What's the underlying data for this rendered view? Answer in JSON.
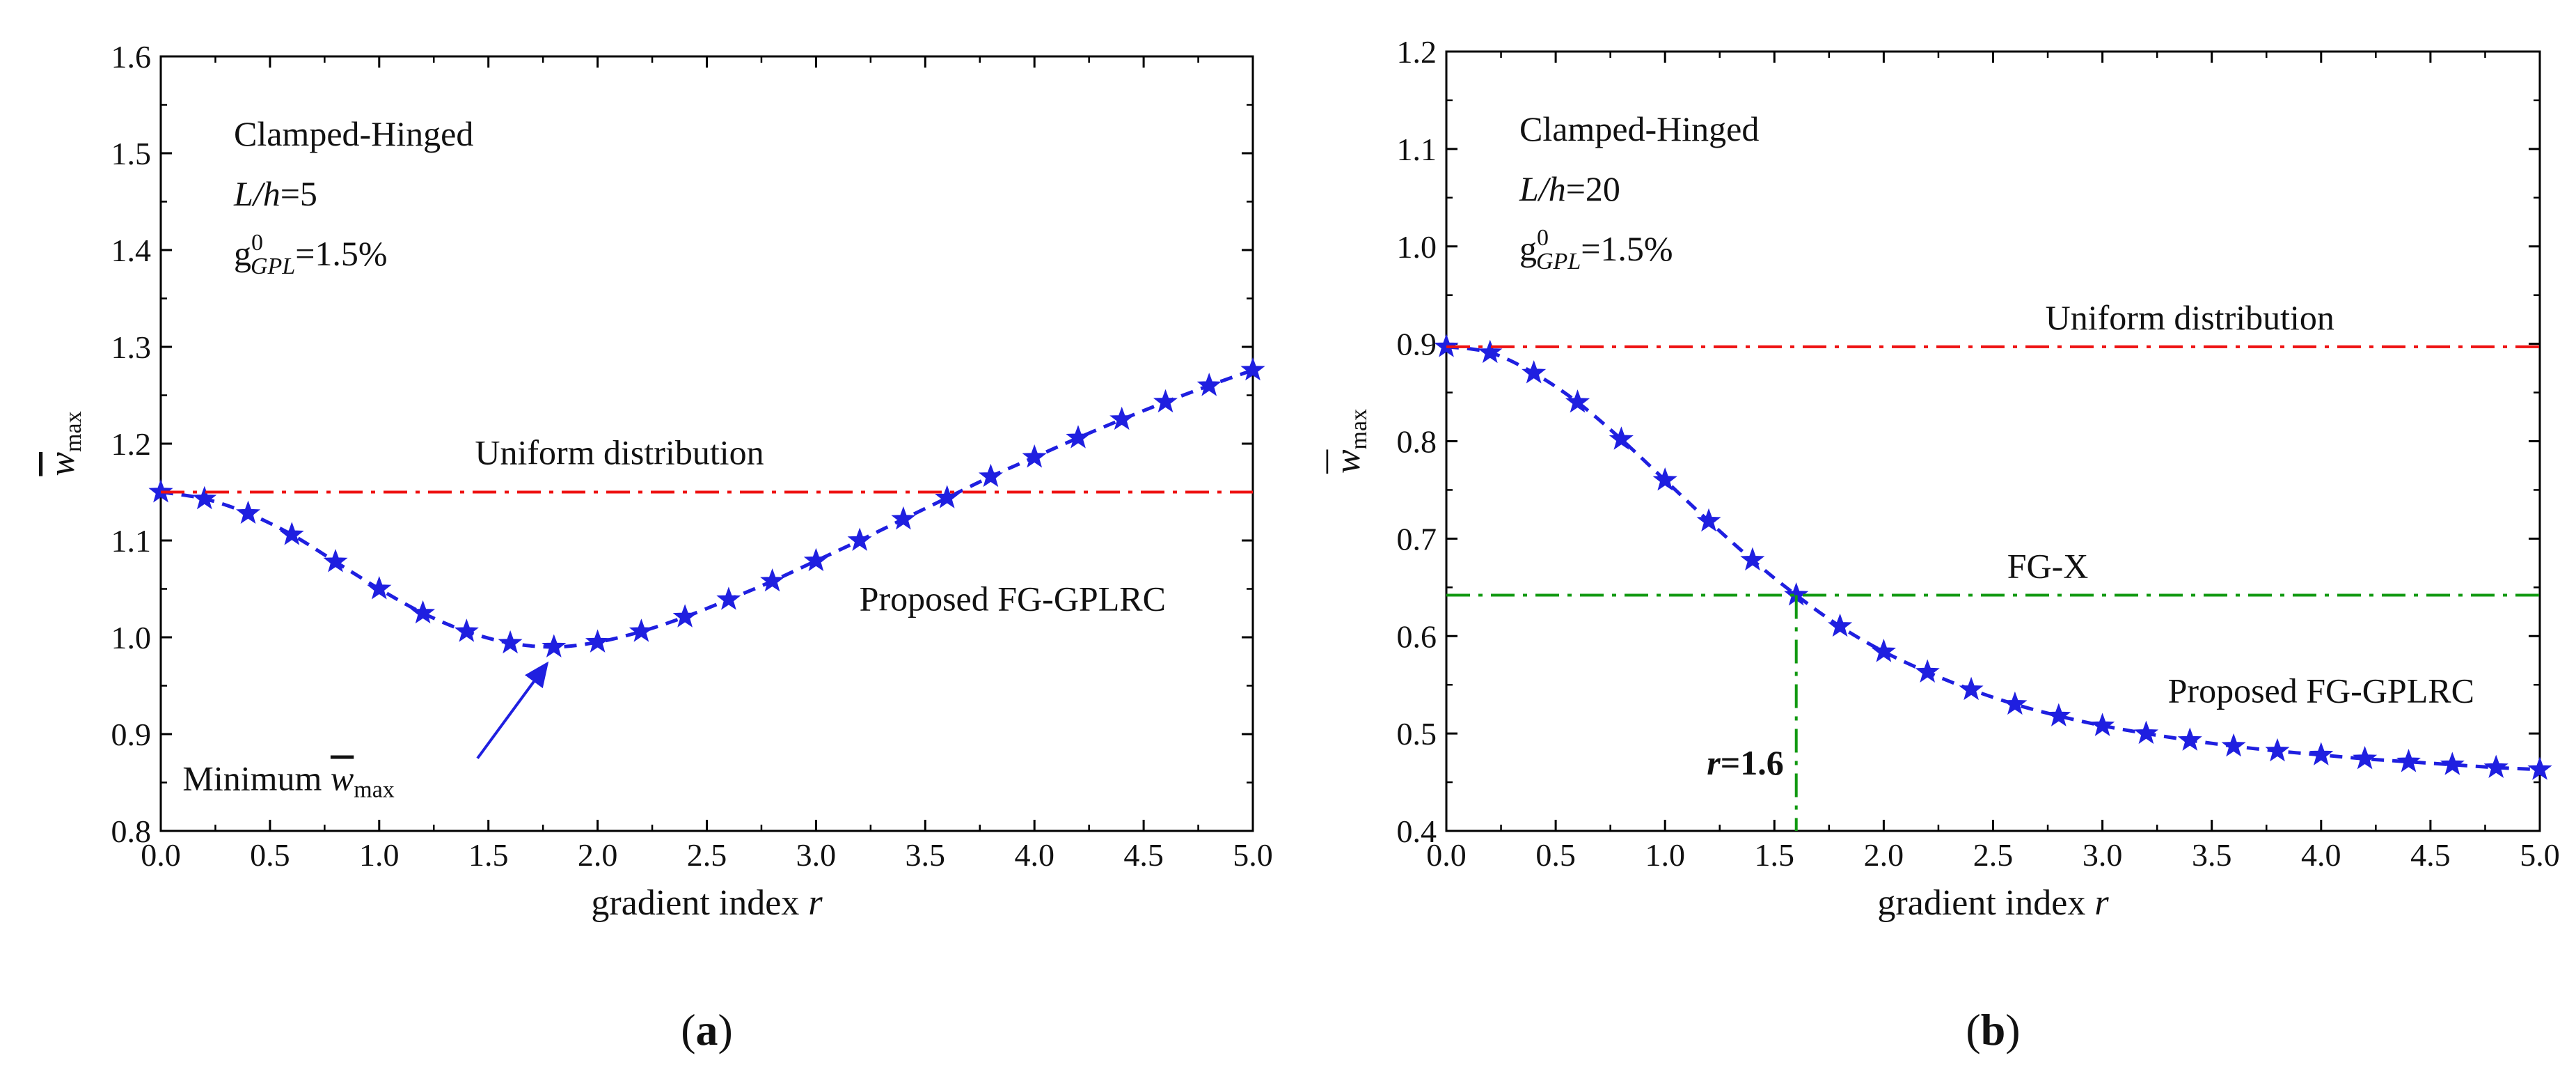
{
  "chart_data": [
    {
      "type": "line",
      "panel_label": "a",
      "xlabel": "gradient index",
      "xlabel_var": "r",
      "ylabel_sym": "w",
      "ylabel_sub": "max",
      "xlim": [
        0.0,
        5.0
      ],
      "ylim": [
        0.8,
        1.6
      ],
      "xticks": [
        "0.0",
        "0.5",
        "1.0",
        "1.5",
        "2.0",
        "2.5",
        "3.0",
        "3.5",
        "4.0",
        "4.5",
        "5.0"
      ],
      "yticks": [
        "0.8",
        "0.9",
        "1.0",
        "1.1",
        "1.2",
        "1.3",
        "1.4",
        "1.5",
        "1.6"
      ],
      "text_title": "Clamped-Hinged",
      "text_ratio_var": "L/h",
      "text_ratio_val": "=5",
      "text_g_base": "g",
      "text_g_sup": "0",
      "text_g_sub": "GPL",
      "text_g_val": "=1.5%",
      "series": [
        {
          "name": "Proposed FG-GPLRC",
          "color": "#1f1fe0",
          "style": "dashed-star",
          "x": [
            0.0,
            0.2,
            0.4,
            0.6,
            0.8,
            1.0,
            1.2,
            1.4,
            1.6,
            1.8,
            2.0,
            2.2,
            2.4,
            2.6,
            2.8,
            3.0,
            3.2,
            3.4,
            3.6,
            3.8,
            4.0,
            4.2,
            4.4,
            4.6,
            4.8,
            5.0
          ],
          "y": [
            1.15,
            1.143,
            1.128,
            1.106,
            1.078,
            1.05,
            1.025,
            1.006,
            0.994,
            0.99,
            0.995,
            1.006,
            1.021,
            1.039,
            1.058,
            1.079,
            1.1,
            1.122,
            1.144,
            1.166,
            1.186,
            1.206,
            1.225,
            1.243,
            1.26,
            1.276
          ]
        },
        {
          "name": "Uniform distribution",
          "color": "#ee1111",
          "style": "dashdot",
          "x": [
            0.0,
            5.0
          ],
          "y": [
            1.15,
            1.15
          ]
        }
      ],
      "annotations": [
        {
          "text": "Minimum",
          "sym": "w",
          "sub": "max",
          "x": 0.1,
          "y": 0.855,
          "arrow_to": [
            1.8,
            0.99
          ],
          "color": "#1f1fe0"
        }
      ]
    },
    {
      "type": "line",
      "panel_label": "b",
      "xlabel": "gradient index",
      "xlabel_var": "r",
      "ylabel_sym": "w",
      "ylabel_sub": "max",
      "xlim": [
        0.0,
        5.0
      ],
      "ylim": [
        0.4,
        1.2
      ],
      "xticks": [
        "0.0",
        "0.5",
        "1.0",
        "1.5",
        "2.0",
        "2.5",
        "3.0",
        "3.5",
        "4.0",
        "4.5",
        "5.0"
      ],
      "yticks": [
        "0.4",
        "0.5",
        "0.6",
        "0.7",
        "0.8",
        "0.9",
        "1.0",
        "1.1",
        "1.2"
      ],
      "text_title": "Clamped-Hinged",
      "text_ratio_var": "L/h",
      "text_ratio_val": "=20",
      "text_g_base": "g",
      "text_g_sup": "0",
      "text_g_sub": "GPL",
      "text_g_val": "=1.5%",
      "series": [
        {
          "name": "Proposed FG-GPLRC",
          "color": "#1f1fe0",
          "style": "dashed-star",
          "x": [
            0.0,
            0.2,
            0.4,
            0.6,
            0.8,
            1.0,
            1.2,
            1.4,
            1.6,
            1.8,
            2.0,
            2.2,
            2.4,
            2.6,
            2.8,
            3.0,
            3.2,
            3.4,
            3.6,
            3.8,
            4.0,
            4.2,
            4.4,
            4.6,
            4.8,
            5.0
          ],
          "y": [
            0.897,
            0.891,
            0.87,
            0.84,
            0.802,
            0.76,
            0.718,
            0.678,
            0.642,
            0.61,
            0.584,
            0.563,
            0.545,
            0.53,
            0.518,
            0.508,
            0.5,
            0.493,
            0.487,
            0.482,
            0.478,
            0.474,
            0.471,
            0.468,
            0.465,
            0.463
          ]
        },
        {
          "name": "Uniform distribution",
          "color": "#ee1111",
          "style": "dashdot",
          "x": [
            0.0,
            5.0
          ],
          "y": [
            0.897,
            0.897
          ]
        },
        {
          "name": "FG-X",
          "color": "#119911",
          "style": "dashdot",
          "x": [
            0.0,
            5.0
          ],
          "y": [
            0.642,
            0.642
          ]
        }
      ],
      "annotations": [
        {
          "text": "r=1.6",
          "var": "r",
          "val": "=1.6",
          "x": 1.6,
          "y": 0.642,
          "color": "#119911"
        }
      ]
    }
  ]
}
